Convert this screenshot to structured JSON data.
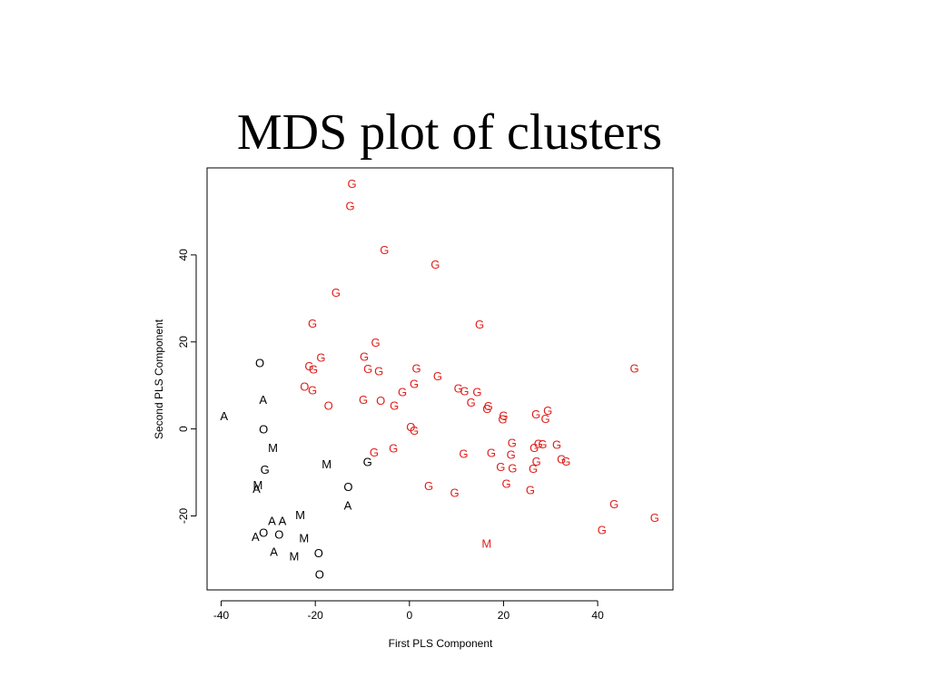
{
  "slide": {
    "title": "MDS plot of clusters"
  },
  "chart_data": {
    "type": "scatter",
    "title": "",
    "xlabel": "First PLS Component",
    "ylabel": "Second PLS Component",
    "xlim": [
      -43,
      56
    ],
    "ylim": [
      -37,
      60
    ],
    "xticks": [
      -40,
      -20,
      0,
      20,
      40
    ],
    "yticks": [
      -20,
      0,
      20,
      40
    ],
    "grid": false,
    "legend": "none",
    "colors": {
      "G": "#e0201c",
      "default": "#000000"
    },
    "points": [
      {
        "label": "G",
        "x": -12.2,
        "y": 56.5,
        "color": "red"
      },
      {
        "label": "G",
        "x": -12.6,
        "y": 51.3,
        "color": "red"
      },
      {
        "label": "G",
        "x": -5.3,
        "y": 41.2,
        "color": "red"
      },
      {
        "label": "G",
        "x": 5.5,
        "y": 37.9,
        "color": "red"
      },
      {
        "label": "G",
        "x": -15.6,
        "y": 31.4,
        "color": "red"
      },
      {
        "label": "G",
        "x": -20.6,
        "y": 24.3,
        "color": "red"
      },
      {
        "label": "G",
        "x": 14.9,
        "y": 24.1,
        "color": "red"
      },
      {
        "label": "G",
        "x": -7.2,
        "y": 20.0,
        "color": "red"
      },
      {
        "label": "G",
        "x": -9.6,
        "y": 16.7,
        "color": "red"
      },
      {
        "label": "G",
        "x": -18.8,
        "y": 16.5,
        "color": "red"
      },
      {
        "label": "G",
        "x": -21.3,
        "y": 14.5,
        "color": "red"
      },
      {
        "label": "G",
        "x": -20.4,
        "y": 13.8,
        "color": "red"
      },
      {
        "label": "G",
        "x": -8.8,
        "y": 13.9,
        "color": "red"
      },
      {
        "label": "G",
        "x": -6.5,
        "y": 13.4,
        "color": "red"
      },
      {
        "label": "G",
        "x": 1.5,
        "y": 14.0,
        "color": "red"
      },
      {
        "label": "G",
        "x": 47.8,
        "y": 14.0,
        "color": "red"
      },
      {
        "label": "G",
        "x": 6.0,
        "y": 12.2,
        "color": "red"
      },
      {
        "label": "O",
        "x": -22.3,
        "y": 9.8,
        "color": "red"
      },
      {
        "label": "G",
        "x": -20.6,
        "y": 9.0,
        "color": "red"
      },
      {
        "label": "G",
        "x": 1.0,
        "y": 10.5,
        "color": "red"
      },
      {
        "label": "G",
        "x": 10.4,
        "y": 9.4,
        "color": "red"
      },
      {
        "label": "G",
        "x": 11.7,
        "y": 8.8,
        "color": "red"
      },
      {
        "label": "G",
        "x": 14.4,
        "y": 8.6,
        "color": "red"
      },
      {
        "label": "G",
        "x": -1.5,
        "y": 8.6,
        "color": "red"
      },
      {
        "label": "G",
        "x": -9.8,
        "y": 6.8,
        "color": "red"
      },
      {
        "label": "O",
        "x": -6.1,
        "y": 6.6,
        "color": "red"
      },
      {
        "label": "O",
        "x": -17.2,
        "y": 5.4,
        "color": "red"
      },
      {
        "label": "G",
        "x": -3.2,
        "y": 5.4,
        "color": "red"
      },
      {
        "label": "G",
        "x": 13.1,
        "y": 6.2,
        "color": "red"
      },
      {
        "label": "G",
        "x": 16.8,
        "y": 5.3,
        "color": "red"
      },
      {
        "label": "G",
        "x": 16.5,
        "y": 4.7,
        "color": "red"
      },
      {
        "label": "G",
        "x": 20.0,
        "y": 3.2,
        "color": "red"
      },
      {
        "label": "G",
        "x": 19.8,
        "y": 2.3,
        "color": "red"
      },
      {
        "label": "G",
        "x": 26.9,
        "y": 3.5,
        "color": "red"
      },
      {
        "label": "G",
        "x": 29.4,
        "y": 4.3,
        "color": "red"
      },
      {
        "label": "G",
        "x": 28.9,
        "y": 2.4,
        "color": "red"
      },
      {
        "label": "O",
        "x": 0.3,
        "y": 0.5,
        "color": "red"
      },
      {
        "label": "G",
        "x": 1.0,
        "y": -0.3,
        "color": "red"
      },
      {
        "label": "G",
        "x": 21.8,
        "y": -3.1,
        "color": "red"
      },
      {
        "label": "G",
        "x": 27.4,
        "y": -3.3,
        "color": "red"
      },
      {
        "label": "G",
        "x": 28.3,
        "y": -3.4,
        "color": "red"
      },
      {
        "label": "G",
        "x": 31.3,
        "y": -3.5,
        "color": "red"
      },
      {
        "label": "G",
        "x": 26.5,
        "y": -4.3,
        "color": "red"
      },
      {
        "label": "G",
        "x": -3.4,
        "y": -4.4,
        "color": "red"
      },
      {
        "label": "G",
        "x": -7.5,
        "y": -5.3,
        "color": "red"
      },
      {
        "label": "G",
        "x": 11.5,
        "y": -5.6,
        "color": "red"
      },
      {
        "label": "G",
        "x": 17.4,
        "y": -5.4,
        "color": "red"
      },
      {
        "label": "G",
        "x": 21.6,
        "y": -5.8,
        "color": "red"
      },
      {
        "label": "G",
        "x": 32.3,
        "y": -6.9,
        "color": "red"
      },
      {
        "label": "G",
        "x": 33.3,
        "y": -7.4,
        "color": "red"
      },
      {
        "label": "G",
        "x": 27.0,
        "y": -7.4,
        "color": "red"
      },
      {
        "label": "G",
        "x": 19.4,
        "y": -8.6,
        "color": "red"
      },
      {
        "label": "G",
        "x": 21.9,
        "y": -8.9,
        "color": "red"
      },
      {
        "label": "G",
        "x": 26.3,
        "y": -9.0,
        "color": "red"
      },
      {
        "label": "G",
        "x": 20.6,
        "y": -12.5,
        "color": "red"
      },
      {
        "label": "G",
        "x": 4.1,
        "y": -13.0,
        "color": "red"
      },
      {
        "label": "G",
        "x": 9.6,
        "y": -14.6,
        "color": "red"
      },
      {
        "label": "G",
        "x": 25.7,
        "y": -13.9,
        "color": "red"
      },
      {
        "label": "G",
        "x": 43.5,
        "y": -17.2,
        "color": "red"
      },
      {
        "label": "G",
        "x": 52.1,
        "y": -20.3,
        "color": "red"
      },
      {
        "label": "G",
        "x": 40.9,
        "y": -23.1,
        "color": "red"
      },
      {
        "label": "M",
        "x": 16.4,
        "y": -26.3,
        "color": "red"
      },
      {
        "label": "O",
        "x": -31.8,
        "y": 15.3,
        "color": "black"
      },
      {
        "label": "A",
        "x": -31.1,
        "y": 6.8,
        "color": "black"
      },
      {
        "label": "A",
        "x": -39.4,
        "y": 3.1,
        "color": "black"
      },
      {
        "label": "O",
        "x": -31.0,
        "y": 0.0,
        "color": "black"
      },
      {
        "label": "M",
        "x": -29.0,
        "y": -4.2,
        "color": "black"
      },
      {
        "label": "G",
        "x": -30.7,
        "y": -9.3,
        "color": "black"
      },
      {
        "label": "M",
        "x": -17.6,
        "y": -8.0,
        "color": "black"
      },
      {
        "label": "G",
        "x": -8.9,
        "y": -7.5,
        "color": "black"
      },
      {
        "label": "M",
        "x": -32.2,
        "y": -12.8,
        "color": "black"
      },
      {
        "label": "A",
        "x": -32.5,
        "y": -13.6,
        "color": "black"
      },
      {
        "label": "O",
        "x": -13.0,
        "y": -13.2,
        "color": "black"
      },
      {
        "label": "A",
        "x": -13.1,
        "y": -17.5,
        "color": "black"
      },
      {
        "label": "M",
        "x": -23.2,
        "y": -19.7,
        "color": "black"
      },
      {
        "label": "A",
        "x": -29.2,
        "y": -21.0,
        "color": "black"
      },
      {
        "label": "A",
        "x": -27.0,
        "y": -21.0,
        "color": "black"
      },
      {
        "label": "O",
        "x": -31.0,
        "y": -23.8,
        "color": "black"
      },
      {
        "label": "A",
        "x": -32.7,
        "y": -24.7,
        "color": "black"
      },
      {
        "label": "O",
        "x": -27.7,
        "y": -24.2,
        "color": "black"
      },
      {
        "label": "M",
        "x": -22.4,
        "y": -25.0,
        "color": "black"
      },
      {
        "label": "A",
        "x": -28.8,
        "y": -28.1,
        "color": "black"
      },
      {
        "label": "M",
        "x": -24.5,
        "y": -29.2,
        "color": "black"
      },
      {
        "label": "O",
        "x": -19.3,
        "y": -28.4,
        "color": "black"
      },
      {
        "label": "O",
        "x": -19.1,
        "y": -33.3,
        "color": "black"
      }
    ]
  }
}
